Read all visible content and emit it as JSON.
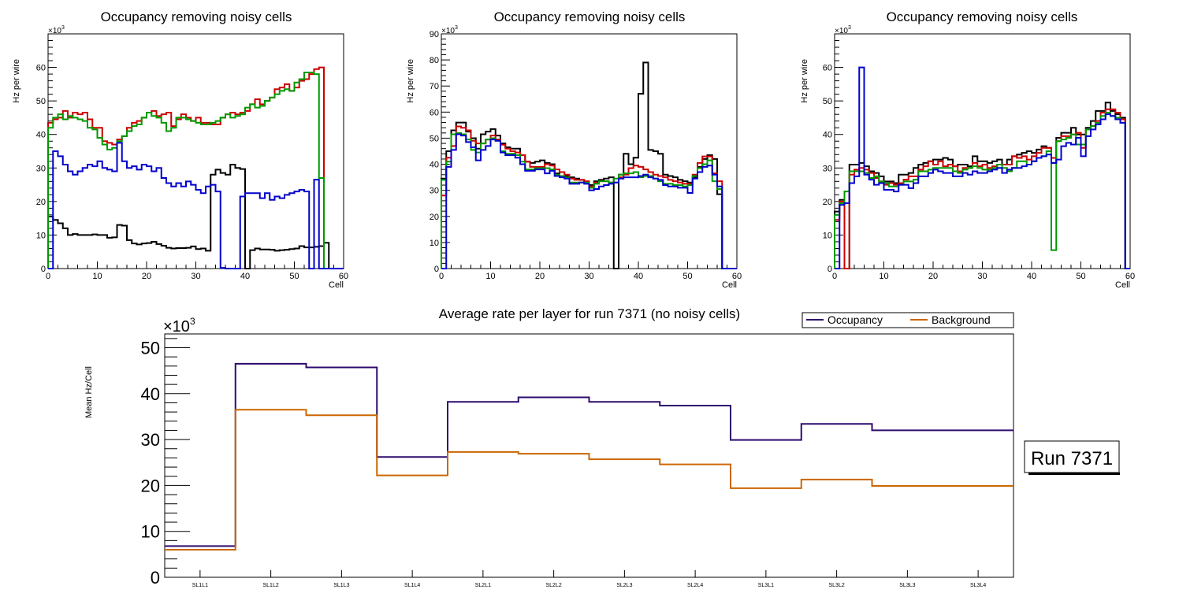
{
  "chart_data": [
    {
      "type": "histogram-step",
      "title": "Occupancy removing noisy cells",
      "xlabel": "Cell",
      "ylabel": "Hz per wire",
      "y_multiplier": "×10³",
      "xlim": [
        0,
        60
      ],
      "ylim": [
        0,
        70
      ],
      "xticks": [
        0,
        10,
        20,
        30,
        40,
        50,
        60
      ],
      "yticks": [
        0,
        10,
        20,
        30,
        40,
        50,
        60
      ],
      "series": [
        {
          "name": "black",
          "color": "#000000",
          "values": [
            15.5,
            14.5,
            13.5,
            12,
            10,
            10.3,
            10,
            10,
            10,
            10.2,
            10,
            10,
            9.2,
            9.3,
            13,
            12.8,
            8.5,
            7.5,
            7.2,
            7.5,
            7.6,
            8,
            7.3,
            6.8,
            6.2,
            6,
            6.1,
            6.1,
            6.2,
            6.6,
            5.8,
            6,
            5.3,
            28,
            29.5,
            28.5,
            28,
            31,
            30,
            29.7,
            0,
            5.5,
            6,
            5.7,
            5.7,
            5.6,
            5.3,
            5.5,
            5.6,
            5.8,
            6,
            6.7,
            6.3,
            6.3,
            6.5,
            6.7,
            7.7,
            0,
            0,
            0
          ]
        },
        {
          "name": "red",
          "color": "#cc0000",
          "values": [
            43.5,
            44.5,
            45,
            47,
            45,
            46.5,
            46,
            46.5,
            44.5,
            42,
            42,
            38,
            37.5,
            37,
            38.5,
            39.5,
            42,
            43.5,
            44,
            45,
            46.5,
            47,
            45.5,
            46,
            46.5,
            42.5,
            44.5,
            46,
            45,
            44,
            45,
            43.5,
            43.5,
            43,
            43,
            45,
            46,
            46.5,
            46,
            46.5,
            47,
            49,
            50.5,
            49,
            50,
            51,
            53.5,
            54,
            55,
            53,
            54,
            56,
            56.5,
            58,
            59.5,
            60,
            0,
            0,
            0,
            0
          ]
        },
        {
          "name": "green",
          "color": "#009900",
          "values": [
            42,
            45,
            46,
            44.5,
            45.5,
            45,
            44.5,
            44,
            42,
            41.5,
            39,
            37,
            35.5,
            36,
            38,
            39.5,
            41,
            42.5,
            43,
            45,
            46.5,
            45.5,
            45,
            43.5,
            41,
            42,
            45,
            45,
            44.5,
            44,
            43.5,
            43,
            43,
            43.5,
            44,
            45,
            46,
            45,
            45.5,
            46,
            48,
            49,
            48,
            48.5,
            50,
            51,
            52,
            53,
            53.5,
            53,
            55.5,
            56.5,
            58.5,
            58.5,
            58,
            27,
            0,
            0,
            0,
            0
          ]
        },
        {
          "name": "blue",
          "color": "#0000cc",
          "values": [
            0,
            35,
            33.5,
            31,
            29,
            28,
            29,
            30,
            31,
            30.5,
            32,
            30,
            29.5,
            29,
            37.5,
            32,
            30,
            30.5,
            29.5,
            31,
            30.5,
            29,
            30,
            27,
            25.5,
            24.5,
            25.5,
            24.5,
            26,
            25,
            23.5,
            22.5,
            24.5,
            25,
            23,
            0.2,
            0,
            0,
            0,
            21.5,
            22.5,
            22.5,
            22.5,
            21,
            22.5,
            20.5,
            21.5,
            21,
            22,
            22.5,
            23,
            23.5,
            23,
            0,
            26.5,
            0,
            0,
            0,
            0,
            0
          ]
        }
      ]
    },
    {
      "type": "histogram-step",
      "title": "Occupancy removing noisy cells",
      "xlabel": "Cell",
      "ylabel": "Hz per wire",
      "y_multiplier": "×10³",
      "xlim": [
        0,
        60
      ],
      "ylim": [
        0,
        90
      ],
      "xticks": [
        0,
        10,
        20,
        30,
        40,
        50,
        60
      ],
      "yticks": [
        0,
        10,
        20,
        30,
        40,
        50,
        60,
        70,
        80,
        90
      ],
      "series": [
        {
          "name": "black",
          "color": "#000000",
          "values": [
            34.5,
            45,
            53,
            56,
            56,
            52.5,
            50,
            46,
            51.5,
            52.5,
            53.5,
            51,
            48,
            46.5,
            46,
            46,
            43.5,
            41,
            40.5,
            41,
            41.5,
            40.5,
            40,
            36.5,
            35.5,
            35.5,
            35,
            34.5,
            34,
            33,
            32,
            33.5,
            34,
            34.5,
            35,
            0,
            36,
            44,
            40,
            42.5,
            67,
            79,
            45.5,
            45,
            44,
            36,
            35.5,
            35,
            34,
            33.5,
            33,
            35,
            39,
            42,
            43.5,
            42,
            28.5,
            0,
            0,
            0
          ]
        },
        {
          "name": "red",
          "color": "#cc0000",
          "values": [
            28,
            42.5,
            47,
            54.5,
            54,
            53,
            49,
            48,
            48,
            49.5,
            51,
            49.5,
            47.5,
            46,
            45,
            44.5,
            43.5,
            41,
            39,
            39,
            39,
            40,
            39.5,
            38,
            37,
            36,
            34.5,
            34,
            34,
            33.5,
            31.5,
            33,
            33.5,
            33.5,
            33,
            33,
            35,
            36,
            38.5,
            39.5,
            39,
            38,
            37,
            36,
            35.5,
            35,
            34,
            33.5,
            33,
            32.5,
            32.5,
            36,
            40.5,
            43,
            43,
            36.5,
            33.5,
            0,
            0,
            0
          ]
        },
        {
          "name": "green",
          "color": "#009900",
          "values": [
            34,
            41,
            51.5,
            52,
            51.5,
            49.5,
            45.5,
            44.5,
            48,
            49.5,
            50,
            49,
            45,
            44,
            44,
            43.5,
            41,
            38,
            38,
            38.5,
            38.5,
            38.5,
            38,
            36,
            35.5,
            35,
            33,
            33,
            33,
            33,
            31,
            32.5,
            33.5,
            33.5,
            33,
            34.5,
            36,
            36.5,
            36.5,
            37,
            35,
            35.5,
            35.5,
            34.5,
            33.5,
            32.5,
            32.5,
            32,
            32,
            31.5,
            32,
            35.5,
            38.5,
            40,
            41.5,
            33.5,
            30.5,
            0,
            0,
            0
          ]
        },
        {
          "name": "blue",
          "color": "#0000cc",
          "values": [
            0,
            39,
            45.5,
            51.5,
            51,
            48.5,
            46.5,
            41.5,
            45.5,
            47,
            49.5,
            49,
            44.5,
            43.5,
            43.5,
            42.5,
            40,
            37.5,
            37.5,
            38,
            38,
            36.5,
            37.5,
            35.5,
            35,
            34.5,
            32.5,
            32.5,
            33,
            32.5,
            30,
            30.5,
            31.5,
            32,
            32.5,
            33,
            34.5,
            35,
            35,
            35,
            35.5,
            36,
            35,
            34.5,
            34,
            32,
            31.5,
            31.5,
            31,
            31,
            29,
            34.5,
            37,
            39,
            39.5,
            36,
            31.5,
            0,
            0,
            0
          ]
        }
      ]
    },
    {
      "type": "histogram-step",
      "title": "Occupancy removing noisy cells",
      "xlabel": "Cell",
      "ylabel": "Hz per wire",
      "y_multiplier": "×10³",
      "xlim": [
        0,
        60
      ],
      "ylim": [
        0,
        70
      ],
      "xticks": [
        0,
        10,
        20,
        30,
        40,
        50,
        60
      ],
      "yticks": [
        0,
        10,
        20,
        30,
        40,
        50,
        60
      ],
      "series": [
        {
          "name": "black",
          "color": "#000000",
          "values": [
            17,
            20.5,
            0,
            31,
            31,
            31.5,
            30.5,
            29,
            28.5,
            27.5,
            26,
            26,
            25.5,
            28,
            28,
            28.5,
            30,
            31,
            31.5,
            32,
            32.5,
            32.5,
            33,
            32.5,
            30.5,
            31,
            31,
            30.5,
            33.5,
            32,
            32,
            31.5,
            32,
            32.5,
            31,
            32.5,
            33.5,
            34,
            34.5,
            35,
            34.5,
            35.5,
            36.5,
            36,
            31.5,
            39,
            40.5,
            40.5,
            42,
            40,
            40,
            42,
            44,
            47,
            47,
            49.5,
            47,
            46,
            45,
            0
          ]
        },
        {
          "name": "red",
          "color": "#cc0000",
          "values": [
            14.5,
            20,
            0,
            28,
            29.5,
            30,
            29.5,
            28.5,
            27,
            26,
            25,
            25.5,
            25,
            25.5,
            26.5,
            27.5,
            27.5,
            29.5,
            30.5,
            32,
            31,
            32,
            30.5,
            31,
            30.5,
            29,
            30,
            30,
            31.5,
            30.5,
            31,
            30,
            30.5,
            31,
            31,
            31,
            33.5,
            33,
            33.5,
            32.5,
            33.5,
            34.5,
            36,
            36,
            33,
            38,
            39.5,
            39.5,
            40,
            40.5,
            36,
            41.5,
            42.5,
            44,
            46.5,
            47.5,
            47.5,
            46.5,
            44.5,
            0
          ]
        },
        {
          "name": "green",
          "color": "#009900",
          "values": [
            16,
            19.5,
            23,
            29,
            29,
            29,
            28.5,
            27,
            27.5,
            26,
            25.5,
            24.5,
            24.5,
            25,
            26,
            26,
            26.5,
            29,
            29,
            29.5,
            30,
            30,
            30,
            30,
            29,
            28.5,
            29.5,
            30,
            30.5,
            30,
            29.5,
            29.5,
            30,
            31,
            30,
            29,
            30,
            32,
            32,
            31,
            32,
            33,
            33.5,
            35,
            5.5,
            38,
            38.5,
            39,
            40,
            37,
            37,
            41.5,
            42.5,
            43.5,
            45.5,
            46.5,
            45.5,
            45,
            43.5,
            0
          ]
        },
        {
          "name": "blue",
          "color": "#0000cc",
          "values": [
            0,
            19,
            19.5,
            25.5,
            27.5,
            60,
            28,
            26.5,
            25,
            25.5,
            23.5,
            23.5,
            23,
            25,
            25,
            24,
            25.5,
            27.5,
            27.5,
            28.5,
            29.5,
            29,
            28.5,
            28.5,
            27.5,
            27.5,
            28.5,
            28,
            29,
            28.5,
            28.5,
            29,
            29.5,
            30,
            28.5,
            29.5,
            30,
            30,
            30.5,
            31,
            32,
            33,
            33.5,
            34,
            31.5,
            32.5,
            36.5,
            37.5,
            37,
            39,
            33.5,
            39.5,
            41.5,
            43,
            44.5,
            46,
            45.5,
            44.5,
            43.5,
            0
          ]
        }
      ]
    },
    {
      "type": "histogram-step",
      "title": "Average rate per layer for run 7371 (no noisy cells)",
      "xlabel": "",
      "ylabel": "Mean Hz/Cell",
      "y_multiplier": "×10³",
      "ylim": [
        0,
        53
      ],
      "yticks": [
        0,
        10,
        20,
        30,
        40,
        50
      ],
      "categories": [
        "SL1L1",
        "SL1L2",
        "SL1L3",
        "SL1L4",
        "SL2L1",
        "SL2L2",
        "SL2L3",
        "SL2L4",
        "SL3L1",
        "SL3L2",
        "SL3L3",
        "SL3L4"
      ],
      "legend": {
        "position": "top-right",
        "entries": [
          "Occupancy",
          "Background"
        ]
      },
      "series": [
        {
          "name": "Occupancy",
          "color": "#2e0a6e",
          "values": [
            6.8,
            46.5,
            45.7,
            26.2,
            38.2,
            39.2,
            38.2,
            37.4,
            29.9,
            33.4,
            32,
            32
          ]
        },
        {
          "name": "Background",
          "color": "#cc6600",
          "values": [
            6.0,
            36.5,
            35.3,
            22.2,
            27.3,
            26.9,
            25.7,
            24.6,
            19.4,
            21.3,
            19.9,
            19.9
          ]
        }
      ],
      "annotation": "Run 7371"
    }
  ]
}
